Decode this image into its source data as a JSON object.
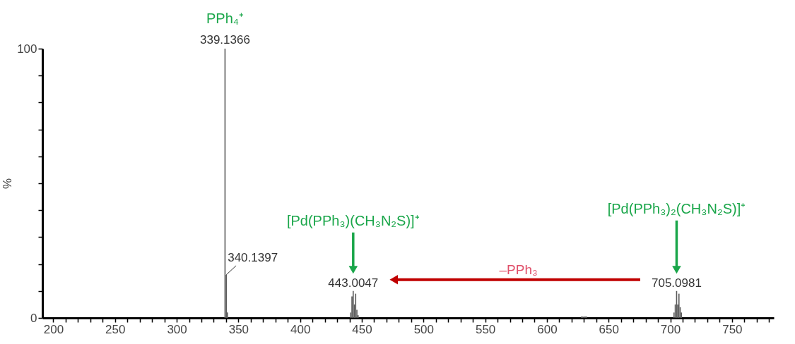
{
  "chart_data": {
    "type": "bar",
    "series": [
      {
        "color": "#5a5a5a",
        "x": [
          339.1366,
          340.1397,
          341.1,
          441.0,
          442.0,
          443.0047,
          444.0,
          445.0,
          446.0,
          447.0,
          628.0,
          629.0,
          630.0,
          631.0,
          632.0,
          703.0,
          704.0,
          705.0981,
          706.0,
          707.0,
          708.0,
          709.0
        ],
        "values": [
          100,
          16,
          2,
          2,
          8,
          10,
          5,
          9,
          3,
          1,
          0.5,
          0.5,
          0.5,
          0.5,
          0.5,
          2,
          5,
          10,
          5,
          9,
          4,
          2
        ]
      }
    ],
    "xlim": [
      194,
      781
    ],
    "ylim": [
      0,
      100
    ],
    "xticks": [
      200,
      {
        "value": 210,
        "label": null
      },
      {
        "value": 220,
        "label": null
      },
      {
        "value": 230,
        "label": null
      },
      {
        "value": 240,
        "label": null
      },
      250,
      {
        "value": 260,
        "label": null
      },
      {
        "value": 270,
        "label": null
      },
      {
        "value": 280,
        "label": null
      },
      {
        "value": 290,
        "label": null
      },
      300,
      {
        "value": 310,
        "label": null
      },
      {
        "value": 320,
        "label": null
      },
      {
        "value": 330,
        "label": null
      },
      {
        "value": 340,
        "label": null
      },
      350,
      {
        "value": 360,
        "label": null
      },
      {
        "value": 370,
        "label": null
      },
      {
        "value": 380,
        "label": null
      },
      {
        "value": 390,
        "label": null
      },
      400,
      {
        "value": 410,
        "label": null
      },
      {
        "value": 420,
        "label": null
      },
      {
        "value": 430,
        "label": null
      },
      {
        "value": 440,
        "label": null
      },
      450,
      {
        "value": 460,
        "label": null
      },
      {
        "value": 470,
        "label": null
      },
      {
        "value": 480,
        "label": null
      },
      {
        "value": 490,
        "label": null
      },
      500,
      {
        "value": 510,
        "label": null
      },
      {
        "value": 520,
        "label": null
      },
      {
        "value": 530,
        "label": null
      },
      {
        "value": 540,
        "label": null
      },
      550,
      {
        "value": 560,
        "label": null
      },
      {
        "value": 570,
        "label": null
      },
      {
        "value": 580,
        "label": null
      },
      {
        "value": 590,
        "label": null
      },
      600,
      {
        "value": 610,
        "label": null
      },
      {
        "value": 620,
        "label": null
      },
      {
        "value": 630,
        "label": null
      },
      {
        "value": 640,
        "label": null
      },
      650,
      {
        "value": 660,
        "label": null
      },
      {
        "value": 670,
        "label": null
      },
      {
        "value": 680,
        "label": null
      },
      {
        "value": 690,
        "label": null
      },
      700,
      {
        "value": 710,
        "label": null
      },
      {
        "value": 720,
        "label": null
      },
      {
        "value": 730,
        "label": null
      },
      {
        "value": 740,
        "label": null
      },
      750,
      {
        "value": 760,
        "label": null
      },
      {
        "value": 770,
        "label": null
      },
      {
        "value": 780,
        "label": null
      }
    ],
    "yticks": [
      0,
      {
        "value": 10,
        "label": null
      },
      {
        "value": 20,
        "label": null
      },
      {
        "value": 30,
        "label": null
      },
      {
        "value": 40,
        "label": null
      },
      {
        "value": 50,
        "label": null
      },
      {
        "value": 60,
        "label": null
      },
      {
        "value": 70,
        "label": null
      },
      {
        "value": 80,
        "label": null
      },
      {
        "value": 90,
        "label": null
      },
      100
    ],
    "ylabel": "%",
    "grid": false,
    "annotations": [
      {
        "text": "339.1366",
        "x": 339.1366,
        "y": 100
      },
      {
        "text": "PPh₄⁺",
        "x": 339.1366,
        "y": 100
      },
      {
        "text": "340.1397",
        "x": 340.1397,
        "y": 16
      },
      {
        "text": "443.0047",
        "x": 443.0047,
        "y": 10
      },
      "[Pd(PPh₃)(CH₃N₂S)]⁺",
      {
        "text": "705.0981",
        "x": 705.0981,
        "y": 10
      },
      "[Pd(PPh₃)₂(CH₃N₂S)]⁺",
      "–PPh₃"
    ]
  }
}
